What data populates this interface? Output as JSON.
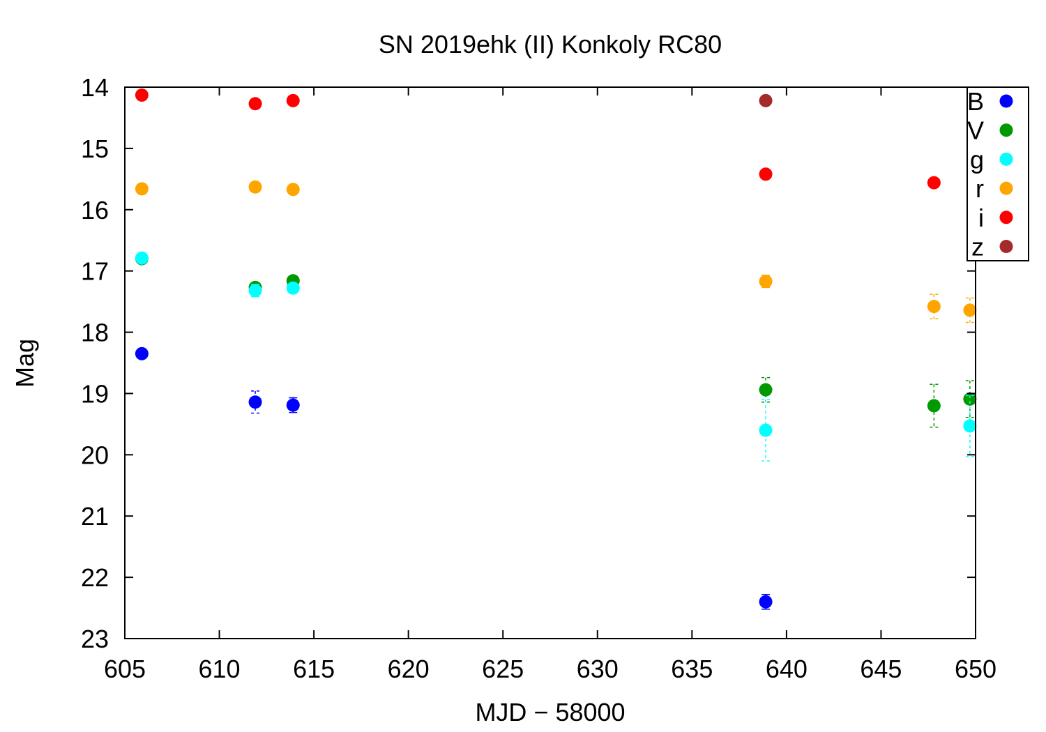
{
  "chart_data": {
    "type": "scatter",
    "title": "SN 2019ehk (II) Konkoly RC80",
    "xlabel": "MJD − 58000",
    "ylabel": "Mag",
    "xlim": [
      605,
      650
    ],
    "ylim": [
      23,
      14
    ],
    "y_inverted": true,
    "grid": false,
    "legend_position": "top-right",
    "x_ticks": [
      "605",
      "610",
      "615",
      "620",
      "625",
      "630",
      "635",
      "640",
      "645",
      "650"
    ],
    "y_ticks": [
      "14",
      "15",
      "16",
      "17",
      "18",
      "19",
      "20",
      "21",
      "22",
      "23"
    ],
    "series": [
      {
        "name": "B",
        "color": "#0000ff",
        "x": [
          605.9,
          611.9,
          613.9,
          638.9
        ],
        "y": [
          18.35,
          19.14,
          19.19,
          22.4
        ],
        "err": [
          0.05,
          0.18,
          0.12,
          0.12
        ]
      },
      {
        "name": "V",
        "color": "#009900",
        "x": [
          605.9,
          611.9,
          613.9,
          638.9,
          647.8,
          649.7
        ],
        "y": [
          16.8,
          17.27,
          17.16,
          18.94,
          19.2,
          19.09
        ],
        "err": [
          0.04,
          0.05,
          0.05,
          0.2,
          0.35,
          0.3
        ]
      },
      {
        "name": "g",
        "color": "#00ffff",
        "x": [
          605.9,
          611.9,
          613.9,
          638.9,
          649.7
        ],
        "y": [
          16.79,
          17.32,
          17.28,
          19.6,
          19.53
        ],
        "err": [
          0.04,
          0.1,
          0.05,
          0.5,
          0.5
        ]
      },
      {
        "name": "r",
        "color": "#ffa500",
        "x": [
          605.9,
          611.9,
          613.9,
          638.9,
          647.8,
          649.7
        ],
        "y": [
          15.66,
          15.63,
          15.67,
          17.17,
          17.58,
          17.64
        ],
        "err": [
          0.03,
          0.03,
          0.03,
          0.1,
          0.2,
          0.2
        ]
      },
      {
        "name": "i",
        "color": "#ff0000",
        "x": [
          605.9,
          611.9,
          613.9,
          638.9,
          647.8
        ],
        "y": [
          14.13,
          14.27,
          14.22,
          15.42,
          15.56
        ],
        "err": [
          0.02,
          0.02,
          0.02,
          0.03,
          0.03
        ]
      },
      {
        "name": "z",
        "color": "#a52a2a",
        "x": [
          638.9
        ],
        "y": [
          14.22
        ],
        "err": [
          0.03
        ]
      }
    ]
  }
}
